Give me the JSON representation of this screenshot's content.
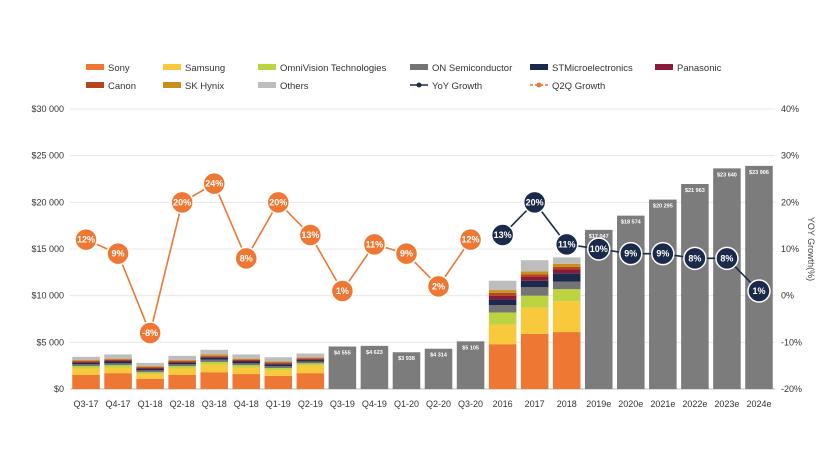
{
  "chart_data": {
    "type": "bar",
    "title": "",
    "ylabel": "",
    "y2label": "YOY Growth(%)",
    "ylim": [
      0,
      30000
    ],
    "y2lim": [
      -20,
      40
    ],
    "yticks": [
      "$0",
      "$5 000",
      "$10 000",
      "$15 000",
      "$20 000",
      "$25 000",
      "$30 000"
    ],
    "y2ticks": [
      "-20%",
      "-10%",
      "0%",
      "10%",
      "20%",
      "30%",
      "40%"
    ],
    "categories": [
      "Q3-17",
      "Q4-17",
      "Q1-18",
      "Q2-18",
      "Q3-18",
      "Q4-18",
      "Q1-19",
      "Q2-19",
      "Q3-19",
      "Q4-19",
      "Q1-20",
      "Q2-20",
      "Q3-20",
      "2016",
      "2017",
      "2018",
      "2019e",
      "2020e",
      "2021e",
      "2022e",
      "2023e",
      "2024e"
    ],
    "legend_position": "top",
    "legend": [
      {
        "name": "Sony",
        "color": "#EE7733",
        "kind": "box"
      },
      {
        "name": "Samsung",
        "color": "#F8C93A",
        "kind": "box"
      },
      {
        "name": "OmniVision Technologies",
        "color": "#BED342",
        "kind": "box"
      },
      {
        "name": "ON Semiconductor",
        "color": "#747474",
        "kind": "box"
      },
      {
        "name": "STMicroelectronics",
        "color": "#1B2A4A",
        "kind": "box"
      },
      {
        "name": "Panasonic",
        "color": "#8B1A3A",
        "kind": "box"
      },
      {
        "name": "Canon",
        "color": "#B5471C",
        "kind": "box"
      },
      {
        "name": "SK Hynix",
        "color": "#C8901A",
        "kind": "box"
      },
      {
        "name": "Others",
        "color": "#BDBDBD",
        "kind": "box"
      },
      {
        "name": "YoY Growth",
        "color": "#1B2A4A",
        "kind": "line"
      },
      {
        "name": "Q2Q Growth",
        "color": "#EE7733",
        "kind": "line"
      }
    ],
    "stacked_series": [
      {
        "name": "Sony",
        "color": "#EE7733",
        "values": [
          1500,
          1700,
          1100,
          1500,
          1800,
          1600,
          1400,
          1700,
          null,
          null,
          null,
          null,
          null,
          4800,
          5900,
          6100,
          null,
          null,
          null,
          null,
          null,
          null
        ]
      },
      {
        "name": "Samsung",
        "color": "#F8C93A",
        "values": [
          700,
          600,
          500,
          700,
          800,
          700,
          600,
          800,
          null,
          null,
          null,
          null,
          null,
          2100,
          2800,
          3300,
          null,
          null,
          null,
          null,
          null,
          null
        ]
      },
      {
        "name": "OmniVision Technologies",
        "color": "#BED342",
        "values": [
          250,
          250,
          200,
          250,
          300,
          250,
          250,
          250,
          null,
          null,
          null,
          null,
          null,
          1300,
          1300,
          1300,
          null,
          null,
          null,
          null,
          null,
          null
        ]
      },
      {
        "name": "ON Semiconductor",
        "color": "#747474",
        "values": [
          200,
          200,
          200,
          200,
          250,
          200,
          200,
          200,
          null,
          null,
          null,
          null,
          null,
          800,
          900,
          800,
          null,
          null,
          null,
          null,
          null,
          null
        ]
      },
      {
        "name": "STMicroelectronics",
        "color": "#1B2A4A",
        "values": [
          150,
          200,
          150,
          150,
          200,
          200,
          200,
          150,
          null,
          null,
          null,
          null,
          null,
          600,
          700,
          900,
          null,
          null,
          null,
          null,
          null,
          null
        ]
      },
      {
        "name": "Panasonic",
        "color": "#8B1A3A",
        "values": [
          100,
          100,
          100,
          100,
          100,
          100,
          100,
          100,
          null,
          null,
          null,
          null,
          null,
          400,
          400,
          400,
          null,
          null,
          null,
          null,
          null,
          null
        ]
      },
      {
        "name": "Canon",
        "color": "#B5471C",
        "values": [
          100,
          100,
          100,
          100,
          100,
          100,
          100,
          100,
          null,
          null,
          null,
          null,
          null,
          300,
          300,
          300,
          null,
          null,
          null,
          null,
          null,
          null
        ]
      },
      {
        "name": "SK Hynix",
        "color": "#C8901A",
        "values": [
          100,
          100,
          100,
          100,
          150,
          100,
          100,
          100,
          null,
          null,
          null,
          null,
          null,
          300,
          300,
          300,
          null,
          null,
          null,
          null,
          null,
          null
        ]
      },
      {
        "name": "Others",
        "color": "#BDBDBD",
        "values": [
          350,
          450,
          350,
          450,
          500,
          450,
          450,
          400,
          null,
          null,
          null,
          null,
          null,
          1000,
          1200,
          700,
          null,
          null,
          null,
          null,
          null,
          null
        ]
      }
    ],
    "total_series": {
      "name": "Total",
      "color": "#7C7C7C",
      "values": [
        null,
        null,
        null,
        null,
        null,
        null,
        null,
        null,
        4555,
        4623,
        3938,
        4314,
        5105,
        null,
        null,
        null,
        17047,
        18574,
        20295,
        21963,
        23640,
        23906
      ],
      "labels": [
        null,
        null,
        null,
        null,
        null,
        null,
        null,
        null,
        "$4 555",
        "$4 623",
        "$3 938",
        "$4 314",
        "$5 105",
        null,
        null,
        null,
        "$17 047",
        "$18 574",
        "$20 295",
        "$21 963",
        "$23 640",
        "$23 906"
      ]
    },
    "q2q_growth": {
      "name": "Q2Q Growth",
      "color": "#EE7733",
      "values": [
        12,
        9,
        -8,
        20,
        24,
        8,
        20,
        13,
        1,
        11,
        9,
        2,
        12
      ],
      "labels": [
        "12%",
        "9%",
        "-8%",
        "20%",
        "24%",
        "8%",
        "20%",
        "13%",
        "1%",
        "11%",
        "9%",
        "2%",
        "12%"
      ]
    },
    "yoy_growth": {
      "name": "YoY Growth",
      "color": "#1B2A4A",
      "start_index": 13,
      "values": [
        13,
        20,
        11,
        10,
        9,
        9,
        8,
        8,
        1
      ],
      "labels": [
        "13%",
        "20%",
        "11%",
        "10%",
        "9%",
        "9%",
        "8%",
        "8%",
        "1%"
      ]
    }
  }
}
